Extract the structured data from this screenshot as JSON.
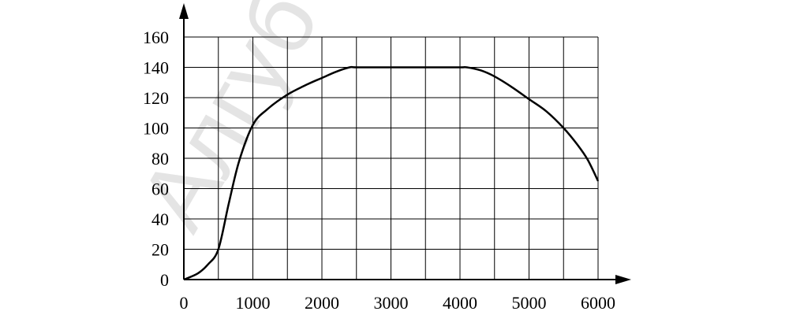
{
  "chart_data": {
    "type": "line",
    "title": "",
    "xlabel": "",
    "ylabel": "",
    "xlim": [
      0,
      6000
    ],
    "ylim": [
      0,
      160
    ],
    "x_ticks": [
      0,
      1000,
      2000,
      3000,
      4000,
      5000,
      6000
    ],
    "y_ticks": [
      0,
      20,
      40,
      60,
      80,
      100,
      120,
      140,
      160
    ],
    "x_ticklabels": [
      "0",
      "1000",
      "2000",
      "3000",
      "4000",
      "5000",
      "6000"
    ],
    "y_ticklabels": [
      "0",
      "20",
      "40",
      "60",
      "80",
      "100",
      "120",
      "140",
      "160"
    ],
    "x_gridlines": [
      500,
      1000,
      1500,
      2000,
      2500,
      3000,
      3500,
      4000,
      4500,
      5000,
      5500,
      6000
    ],
    "grid": true,
    "legend": "none",
    "line_color": "#000000",
    "series": [
      {
        "x": [
          0,
          200,
          350,
          500,
          650,
          800,
          1000,
          1200,
          1500,
          1800,
          2000,
          2200,
          2400,
          2500,
          3000,
          3500,
          4000,
          4100,
          4300,
          4500,
          4750,
          5000,
          5250,
          5500,
          5700,
          5850,
          6000
        ],
        "y": [
          0,
          4,
          10,
          20,
          50,
          78,
          102,
          112,
          122,
          129,
          133,
          137,
          140,
          140,
          140,
          140,
          140,
          140,
          138,
          134,
          127,
          119,
          111,
          100,
          89,
          79,
          65
        ]
      }
    ]
  },
  "watermark": {
    "text": "Алгуб"
  }
}
